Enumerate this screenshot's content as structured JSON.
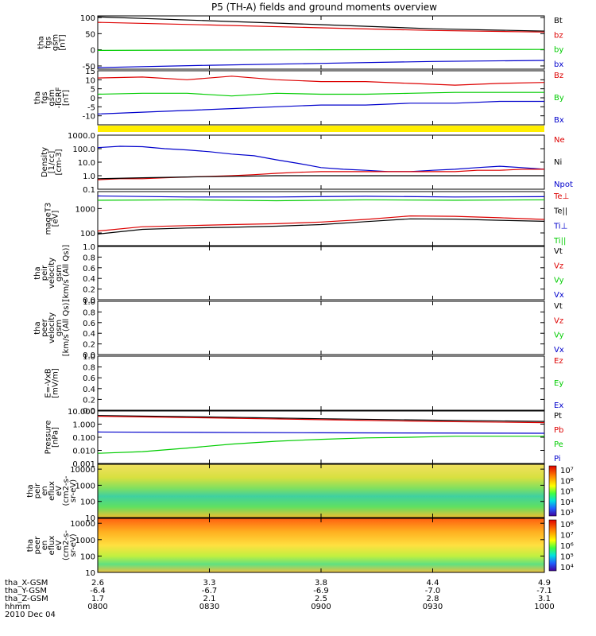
{
  "title": "P5 (TH-A) fields and ground moments overview",
  "colors": {
    "black": "#000000",
    "red": "#dd0000",
    "green": "#00cc00",
    "blue": "#0000cc",
    "yellow": "#ffee00"
  },
  "chart_data": [
    {
      "id": "fgs",
      "type": "line",
      "ylabel": [
        "tha",
        "fgs",
        "gsm",
        "[nT]"
      ],
      "ylim": [
        -60,
        105
      ],
      "yticks": [
        "100",
        "50",
        "0",
        "-50"
      ],
      "legend": [
        {
          "name": "Bt",
          "color": "black"
        },
        {
          "name": "bz",
          "color": "red"
        },
        {
          "name": "by",
          "color": "green"
        },
        {
          "name": "bx",
          "color": "blue"
        }
      ],
      "series": [
        {
          "name": "Bt",
          "color": "black",
          "x": [
            0,
            0.25,
            0.5,
            0.75,
            1
          ],
          "y": [
            102,
            90,
            78,
            65,
            58
          ]
        },
        {
          "name": "bz",
          "color": "red",
          "x": [
            0,
            0.25,
            0.5,
            0.75,
            1
          ],
          "y": [
            85,
            77,
            68,
            60,
            55
          ]
        },
        {
          "name": "by",
          "color": "green",
          "x": [
            0,
            0.5,
            1
          ],
          "y": [
            -2,
            0,
            1
          ]
        },
        {
          "name": "bx",
          "color": "blue",
          "x": [
            0,
            0.25,
            0.5,
            0.75,
            1
          ],
          "y": [
            -55,
            -48,
            -42,
            -36,
            -33
          ]
        }
      ]
    },
    {
      "id": "fgsdbp",
      "type": "line",
      "ylabel": [
        "tha",
        "fgs",
        "gsm",
        "-IGRF",
        "[nT]"
      ],
      "ylim": [
        -15,
        15
      ],
      "yticks": [
        "15",
        "10",
        "5",
        "0",
        "-5",
        "-10"
      ],
      "legend": [
        {
          "name": "Bz",
          "color": "red"
        },
        {
          "name": "By",
          "color": "green"
        },
        {
          "name": "Bx",
          "color": "blue"
        }
      ],
      "series": [
        {
          "name": "Bz",
          "color": "red",
          "x": [
            0,
            0.1,
            0.2,
            0.3,
            0.4,
            0.5,
            0.6,
            0.7,
            0.8,
            0.9,
            1
          ],
          "y": [
            11,
            11.5,
            10,
            12,
            10,
            9,
            9,
            8,
            7,
            8,
            8.5
          ]
        },
        {
          "name": "By",
          "color": "green",
          "x": [
            0,
            0.1,
            0.2,
            0.3,
            0.4,
            0.5,
            0.6,
            0.7,
            0.8,
            0.9,
            1
          ],
          "y": [
            2,
            2.5,
            2.5,
            1,
            2.5,
            2,
            2,
            2.5,
            3,
            3,
            3
          ]
        },
        {
          "name": "Bx",
          "color": "blue",
          "x": [
            0,
            0.1,
            0.2,
            0.3,
            0.4,
            0.5,
            0.6,
            0.7,
            0.8,
            0.9,
            1
          ],
          "y": [
            -9,
            -8,
            -7,
            -6,
            -5,
            -4,
            -4,
            -3,
            -3,
            -2,
            -2
          ]
        }
      ]
    },
    {
      "id": "density",
      "type": "line",
      "ylabel": [
        "Density",
        "[1/cc]",
        "[cm-3]"
      ],
      "ylim": [
        0.1,
        1000
      ],
      "log": true,
      "yticks": [
        "1000.0",
        "100.0",
        "10.0",
        "1.0",
        "0.1"
      ],
      "legend": [
        {
          "name": "Ne",
          "color": "red"
        },
        {
          "name": "Ni",
          "color": "black"
        },
        {
          "name": "Npot",
          "color": "blue"
        }
      ],
      "series": [
        {
          "name": "Npot",
          "color": "blue",
          "x": [
            0,
            0.05,
            0.1,
            0.15,
            0.2,
            0.25,
            0.3,
            0.35,
            0.4,
            0.45,
            0.5,
            0.55,
            0.6,
            0.65,
            0.7,
            0.75,
            0.8,
            0.85,
            0.9,
            0.95,
            1
          ],
          "y": [
            120,
            150,
            140,
            100,
            80,
            60,
            40,
            30,
            15,
            8,
            4,
            3,
            2.5,
            2,
            2,
            2.5,
            3,
            4,
            5,
            4,
            3
          ]
        },
        {
          "name": "Ne",
          "color": "red",
          "x": [
            0,
            0.05,
            0.1,
            0.15,
            0.2,
            0.25,
            0.3,
            0.35,
            0.4,
            0.45,
            0.5,
            0.55,
            0.6,
            0.65,
            0.7,
            0.75,
            0.8,
            0.85,
            0.9,
            0.95,
            1
          ],
          "y": [
            0.5,
            0.6,
            0.6,
            0.7,
            0.8,
            0.9,
            1,
            1.2,
            1.5,
            1.8,
            2,
            2,
            2,
            2,
            2,
            2,
            2,
            2.5,
            2.5,
            3,
            3
          ]
        },
        {
          "name": "Ni",
          "color": "black",
          "x": [
            0,
            0.1,
            0.2,
            0.3,
            0.4,
            0.5,
            0.6,
            0.7,
            0.8,
            0.9,
            1
          ],
          "y": [
            0.6,
            0.7,
            0.8,
            0.9,
            1,
            1,
            1,
            1,
            1,
            1,
            1
          ]
        }
      ]
    },
    {
      "id": "temp",
      "type": "line",
      "ylabel": [
        "mageT3",
        "[eV]"
      ],
      "ylim": [
        30,
        5000
      ],
      "log": true,
      "yticks": [
        "1000",
        "100"
      ],
      "legend": [
        {
          "name": "Te⊥",
          "color": "red"
        },
        {
          "name": "Te||",
          "color": "black"
        },
        {
          "name": "Ti⊥",
          "color": "blue"
        },
        {
          "name": "Ti||",
          "color": "green"
        }
      ],
      "series": [
        {
          "name": "Ti⊥",
          "color": "blue",
          "x": [
            0,
            0.2,
            0.4,
            0.6,
            0.8,
            1
          ],
          "y": [
            3300,
            3000,
            3000,
            3200,
            3000,
            3100
          ]
        },
        {
          "name": "Ti||",
          "color": "green",
          "x": [
            0,
            0.2,
            0.4,
            0.6,
            0.8,
            1
          ],
          "y": [
            2200,
            2300,
            2100,
            2300,
            2200,
            2300
          ]
        },
        {
          "name": "Te⊥",
          "color": "red",
          "x": [
            0,
            0.1,
            0.2,
            0.3,
            0.4,
            0.5,
            0.6,
            0.7,
            0.8,
            0.9,
            1
          ],
          "y": [
            120,
            180,
            200,
            220,
            240,
            280,
            360,
            500,
            480,
            420,
            360
          ]
        },
        {
          "name": "Te||",
          "color": "black",
          "x": [
            0,
            0.1,
            0.2,
            0.3,
            0.4,
            0.5,
            0.6,
            0.7,
            0.8,
            0.9,
            1
          ],
          "y": [
            90,
            140,
            160,
            170,
            190,
            220,
            290,
            380,
            370,
            330,
            300
          ]
        }
      ]
    },
    {
      "id": "peirv",
      "type": "line",
      "ylabel": [
        "tha",
        "peir",
        "velocity",
        "gsm",
        "[km/s (All Qs)]"
      ],
      "ylim": [
        0,
        1
      ],
      "yticks": [
        "1.0",
        "0.8",
        "0.6",
        "0.4",
        "0.2",
        "0.0"
      ],
      "legend": [
        {
          "name": "Vt",
          "color": "black"
        },
        {
          "name": "Vz",
          "color": "red"
        },
        {
          "name": "Vy",
          "color": "green"
        },
        {
          "name": "Vx",
          "color": "blue"
        }
      ],
      "series": []
    },
    {
      "id": "peerv",
      "type": "line",
      "ylabel": [
        "tha",
        "peer",
        "velocity",
        "gsm",
        "[km/s (All Qs)]"
      ],
      "ylim": [
        0,
        1
      ],
      "yticks": [
        "1.0",
        "0.8",
        "0.6",
        "0.4",
        "0.2",
        "0.0"
      ],
      "legend": [
        {
          "name": "Vt",
          "color": "black"
        },
        {
          "name": "Vz",
          "color": "red"
        },
        {
          "name": "Vy",
          "color": "green"
        },
        {
          "name": "Vx",
          "color": "blue"
        }
      ],
      "series": []
    },
    {
      "id": "efield",
      "type": "line",
      "ylabel": [
        "E=-VxB",
        "[mV/m]"
      ],
      "ylim": [
        0,
        1
      ],
      "yticks": [
        "1.0",
        "0.8",
        "0.6",
        "0.4",
        "0.2",
        "0.0"
      ],
      "legend": [
        {
          "name": "Ez",
          "color": "red"
        },
        {
          "name": "Ey",
          "color": "green"
        },
        {
          "name": "Ex",
          "color": "blue"
        }
      ],
      "series": []
    },
    {
      "id": "pressure",
      "type": "line",
      "ylabel": [
        "Pressure",
        "[nPa]"
      ],
      "ylim": [
        0.001,
        10
      ],
      "log": true,
      "yticks": [
        "10.000",
        "1.000",
        "0.100",
        "0.010",
        "0.001"
      ],
      "legend": [
        {
          "name": "Pt",
          "color": "black"
        },
        {
          "name": "Pb",
          "color": "red"
        },
        {
          "name": "Pe",
          "color": "green"
        },
        {
          "name": "Pi",
          "color": "blue"
        }
      ],
      "series": [
        {
          "name": "Pt",
          "color": "black",
          "x": [
            0,
            0.25,
            0.5,
            0.75,
            1
          ],
          "y": [
            4.5,
            3.5,
            2.6,
            2,
            1.6
          ]
        },
        {
          "name": "Pb",
          "color": "red",
          "x": [
            0,
            0.25,
            0.5,
            0.75,
            1
          ],
          "y": [
            4,
            3,
            2.2,
            1.6,
            1.3
          ]
        },
        {
          "name": "Pi",
          "color": "blue",
          "x": [
            0,
            0.5,
            1
          ],
          "y": [
            0.25,
            0.22,
            0.2
          ]
        },
        {
          "name": "Pe",
          "color": "green",
          "x": [
            0,
            0.1,
            0.2,
            0.3,
            0.4,
            0.5,
            0.6,
            0.7,
            0.8,
            0.9,
            1
          ],
          "y": [
            0.006,
            0.008,
            0.015,
            0.03,
            0.05,
            0.07,
            0.09,
            0.1,
            0.12,
            0.12,
            0.12
          ]
        }
      ]
    },
    {
      "id": "peir_spec",
      "type": "heatmap",
      "ylabel": [
        "tha",
        "peir",
        "en",
        "eflux",
        "eV",
        "(cm2-s-",
        "sr-eV)"
      ],
      "ylim": [
        10,
        20000
      ],
      "log": true,
      "yticks": [
        "10000",
        "1000",
        "100",
        "10"
      ],
      "colorbar": [
        "10⁷",
        "10⁶",
        "10⁵",
        "10⁴",
        "10³"
      ]
    },
    {
      "id": "peer_spec",
      "type": "heatmap",
      "ylabel": [
        "tha",
        "peer",
        "en",
        "eflux",
        "eV",
        "(cm2-s-",
        "sr-eV)"
      ],
      "ylim": [
        10,
        20000
      ],
      "log": true,
      "yticks": [
        "10000",
        "1000",
        "100",
        "10"
      ],
      "colorbar": [
        "10⁸",
        "10⁷",
        "10⁶",
        "10⁵",
        "10⁴"
      ]
    }
  ],
  "xaxis": {
    "rows": [
      {
        "label": "tha_X-GSM",
        "values": [
          "2.6",
          "3.3",
          "3.8",
          "4.4",
          "4.9"
        ]
      },
      {
        "label": "tha_Y-GSM",
        "values": [
          "-6.4",
          "-6.7",
          "-6.9",
          "-7.0",
          "-7.1"
        ]
      },
      {
        "label": "tha_Z-GSM",
        "values": [
          "1.7",
          "2.1",
          "2.5",
          "2.8",
          "3.1"
        ]
      },
      {
        "label": "hhmm",
        "values": [
          "0800",
          "0830",
          "0900",
          "0930",
          "1000"
        ]
      }
    ],
    "date": "2010 Dec 04"
  }
}
